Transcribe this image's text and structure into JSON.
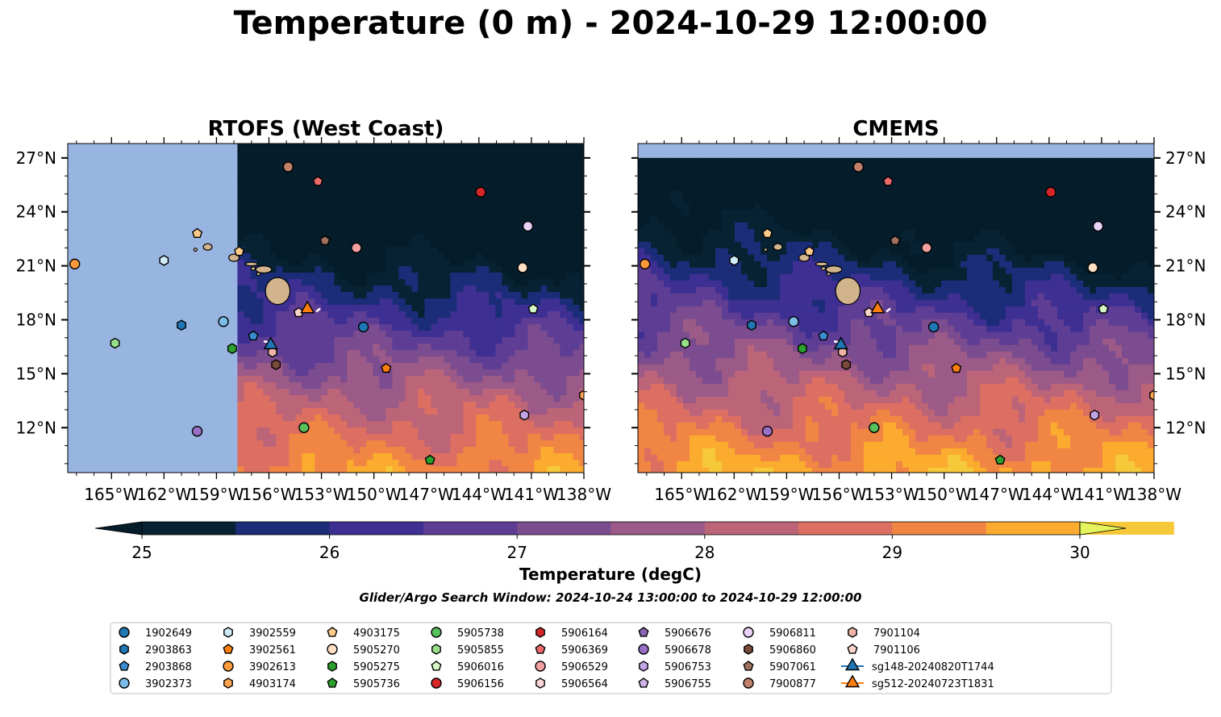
{
  "title": "Temperature (0 m) - 2024-10-29 12:00:00",
  "panels": [
    {
      "title": "RTOFS (West Coast)",
      "masked_west_of": -157.8
    },
    {
      "title": "CMEMS",
      "masked_north_of": 27.0
    }
  ],
  "colorbar": {
    "label": "Temperature (degC)",
    "ticks": [
      "25",
      "26",
      "27",
      "28",
      "29",
      "30"
    ],
    "vmin": 25,
    "vmax": 30,
    "step": 0.5,
    "colors": [
      "#062233",
      "#1b2d78",
      "#3e2f92",
      "#5e3d95",
      "#7b4c8f",
      "#9b5a87",
      "#bc6478",
      "#dc6f62",
      "#f08544",
      "#fbab2e",
      "#f5c93a",
      "#e5f45c"
    ],
    "extend_low_color": "#051c2a",
    "extend_high_color": "#e5f45c"
  },
  "search_window": "Glider/Argo Search Window: 2024-10-24 13:00:00 to 2024-10-29 12:00:00",
  "colors": {
    "land": "#d2b48c",
    "mask": "#98b4e0",
    "glider_148": "#1f77b4",
    "glider_512": "#ff7f0e"
  },
  "chart_data": {
    "type": "scatter",
    "map_extent": {
      "lon": [
        -167.5,
        -138
      ],
      "lat": [
        9.5,
        27.8
      ]
    },
    "xticks": [
      -165,
      -162,
      -159,
      -156,
      -153,
      -150,
      -147,
      -144,
      -141,
      -138
    ],
    "xtick_labels": [
      "165°W",
      "162°W",
      "159°W",
      "156°W",
      "153°W",
      "150°W",
      "147°W",
      "144°W",
      "141°W",
      "138°W"
    ],
    "yticks": [
      12,
      15,
      18,
      21,
      24,
      27
    ],
    "ytick_labels": [
      "12°N",
      "15°N",
      "18°N",
      "21°N",
      "24°N",
      "27°N"
    ],
    "series": [
      {
        "name": "1902649",
        "marker": "circle",
        "color": "#1f77b4",
        "points": [
          [
            -150.6,
            17.6
          ]
        ]
      },
      {
        "name": "2903863",
        "marker": "hexagon",
        "color": "#1f77b4",
        "points": [
          [
            -161.0,
            17.7
          ]
        ]
      },
      {
        "name": "2903868",
        "marker": "pentagon",
        "color": "#3a8ccf",
        "points": [
          [
            -156.9,
            17.1
          ]
        ]
      },
      {
        "name": "3902373",
        "marker": "circle",
        "color": "#7cbde8",
        "points": [
          [
            -158.6,
            17.9
          ]
        ]
      },
      {
        "name": "3902559",
        "marker": "hexagon",
        "color": "#cfeaf9",
        "points": [
          [
            -162.0,
            21.3
          ]
        ]
      },
      {
        "name": "3902561",
        "marker": "pentagon",
        "color": "#ff7f0e",
        "points": [
          [
            -149.3,
            15.3
          ]
        ]
      },
      {
        "name": "3902613",
        "marker": "circle",
        "color": "#ff9a3c",
        "points": [
          [
            -167.1,
            21.1
          ]
        ]
      },
      {
        "name": "4903174",
        "marker": "hexagon",
        "color": "#ffa54f",
        "points": [
          [
            -138.0,
            13.8
          ]
        ]
      },
      {
        "name": "4903175",
        "marker": "pentagon",
        "color": "#ffc98a",
        "points": [
          [
            -160.1,
            22.8
          ],
          [
            -157.7,
            21.8
          ]
        ]
      },
      {
        "name": "5905270",
        "marker": "circle",
        "color": "#ffe0c2",
        "points": [
          [
            -141.5,
            20.9
          ]
        ]
      },
      {
        "name": "5905275",
        "marker": "hexagon",
        "color": "#2ca02c",
        "points": [
          [
            -158.1,
            16.4
          ]
        ]
      },
      {
        "name": "5905736",
        "marker": "pentagon",
        "color": "#2ca02c",
        "points": [
          [
            -146.8,
            10.2
          ]
        ]
      },
      {
        "name": "5905738",
        "marker": "circle",
        "color": "#57c05a",
        "points": [
          [
            -154.0,
            12.0
          ]
        ]
      },
      {
        "name": "5905855",
        "marker": "hexagon",
        "color": "#98df8a",
        "points": [
          [
            -164.8,
            16.7
          ]
        ]
      },
      {
        "name": "5906016",
        "marker": "pentagon",
        "color": "#d4f7c5",
        "points": [
          [
            -140.9,
            18.6
          ]
        ]
      },
      {
        "name": "5906156",
        "marker": "circle",
        "color": "#d62728",
        "points": [
          [
            -143.9,
            25.1
          ]
        ]
      },
      {
        "name": "5906164",
        "marker": "hexagon",
        "color": "#d62728",
        "points": []
      },
      {
        "name": "5906369",
        "marker": "pentagon",
        "color": "#ec6a6a",
        "points": [
          [
            -153.2,
            25.7
          ]
        ]
      },
      {
        "name": "5906529",
        "marker": "circle",
        "color": "#f2a0a0",
        "points": [
          [
            -151.0,
            22.0
          ]
        ]
      },
      {
        "name": "5906564",
        "marker": "hexagon",
        "color": "#fcd6d6",
        "points": []
      },
      {
        "name": "5906676",
        "marker": "pentagon",
        "color": "#8c64b4",
        "points": []
      },
      {
        "name": "5906678",
        "marker": "circle",
        "color": "#9a6fc7",
        "points": [
          [
            -160.1,
            11.8
          ]
        ]
      },
      {
        "name": "5906753",
        "marker": "hexagon",
        "color": "#c2a5e6",
        "points": [
          [
            -141.4,
            12.7
          ]
        ]
      },
      {
        "name": "5906755",
        "marker": "pentagon",
        "color": "#cdb5ea",
        "points": []
      },
      {
        "name": "5906811",
        "marker": "circle",
        "color": "#e9d2f7",
        "points": [
          [
            -141.2,
            23.2
          ]
        ]
      },
      {
        "name": "5906860",
        "marker": "hexagon",
        "color": "#7a4a3a",
        "points": [
          [
            -155.6,
            15.5
          ]
        ]
      },
      {
        "name": "5907061",
        "marker": "pentagon",
        "color": "#a07060",
        "points": [
          [
            -152.8,
            22.4
          ]
        ]
      },
      {
        "name": "7900877",
        "marker": "circle",
        "color": "#c0806a",
        "points": [
          [
            -154.9,
            26.5
          ]
        ]
      },
      {
        "name": "7901104",
        "marker": "hexagon",
        "color": "#efb3a8",
        "points": [
          [
            -155.8,
            16.2
          ]
        ]
      },
      {
        "name": "7901106",
        "marker": "pentagon",
        "color": "#fdd6cc",
        "points": [
          [
            -154.3,
            18.4
          ]
        ]
      },
      {
        "name": "sg148-20240820T1744",
        "marker": "triangle",
        "color": "#1f77b4",
        "points": [
          [
            -155.9,
            16.6
          ]
        ]
      },
      {
        "name": "sg512-20240723T1831",
        "marker": "triangle",
        "color": "#ff7f0e",
        "points": [
          [
            -153.8,
            18.6
          ]
        ]
      }
    ]
  }
}
